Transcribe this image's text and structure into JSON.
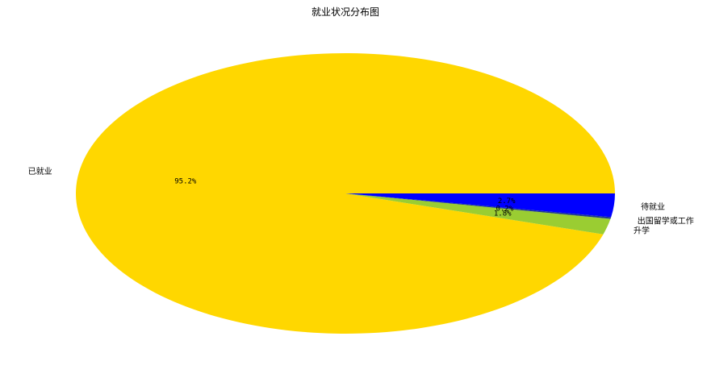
{
  "chart_data": {
    "type": "pie",
    "title": "就业状况分布图",
    "labels": [
      "已就业",
      "升学",
      "出国留学或工作",
      "待就业"
    ],
    "values": [
      95.2,
      1.8,
      0.2,
      2.7
    ],
    "percent_labels": [
      "95.2%",
      "1.8%",
      "0.2%",
      "2.7%"
    ],
    "colors": [
      "#ffd700",
      "#9acd32",
      "#1e3a8a",
      "#0000ff"
    ],
    "start_angle_deg": 0,
    "direction": "counterclockwise"
  }
}
